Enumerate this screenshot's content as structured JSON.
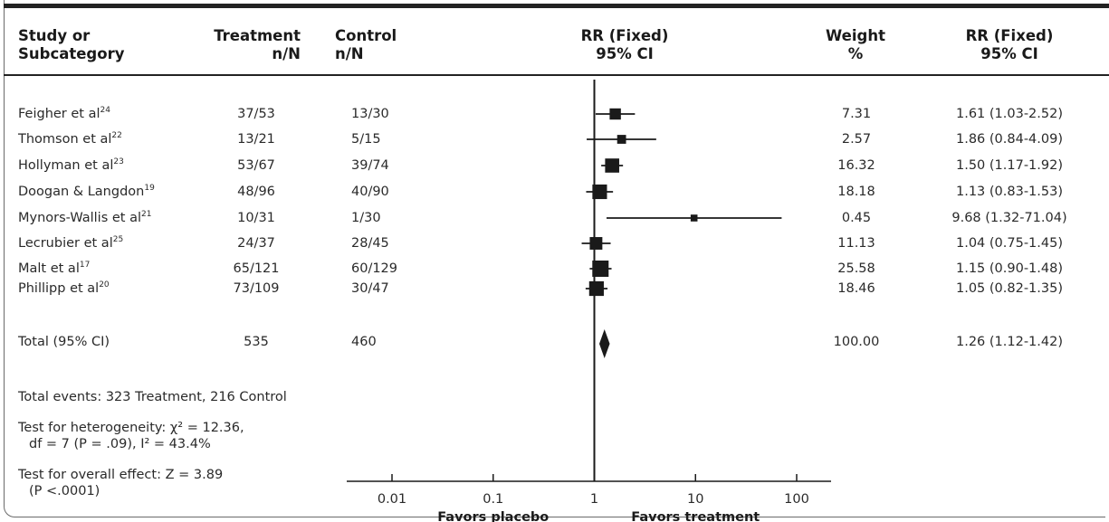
{
  "headers": {
    "study": [
      "Study or",
      "Subcategory"
    ],
    "treatment": [
      "Treatment",
      "n/N"
    ],
    "control": [
      "Control",
      "n/N"
    ],
    "rr_plot": [
      "RR (Fixed)",
      "95% CI"
    ],
    "weight": [
      "Weight",
      "%"
    ],
    "rr_text": [
      "RR (Fixed)",
      "95% CI"
    ]
  },
  "rows": [
    {
      "study": "Feigher et al",
      "ref": "24",
      "treatment": "37/53",
      "control": "13/30",
      "weight": "7.31",
      "rr_text": "1.61 (1.03-2.52)"
    },
    {
      "study": "Thomson et al",
      "ref": "22",
      "treatment": "13/21",
      "control": "5/15",
      "weight": "2.57",
      "rr_text": "1.86 (0.84-4.09)"
    },
    {
      "study": "Hollyman et al",
      "ref": "23",
      "treatment": "53/67",
      "control": "39/74",
      "weight": "16.32",
      "rr_text": "1.50 (1.17-1.92)"
    },
    {
      "study": "Doogan & Langdon",
      "ref": "19",
      "treatment": "48/96",
      "control": "40/90",
      "weight": "18.18",
      "rr_text": "1.13 (0.83-1.53)"
    },
    {
      "study": "Mynors-Wallis et al",
      "ref": "21",
      "treatment": "10/31",
      "control": "1/30",
      "weight": "0.45",
      "rr_text": "9.68 (1.32-71.04)"
    },
    {
      "study": "Lecrubier et al",
      "ref": "25",
      "treatment": "24/37",
      "control": "28/45",
      "weight": "11.13",
      "rr_text": "1.04 (0.75-1.45)"
    },
    {
      "study": "Malt et al",
      "ref": "17",
      "treatment": "65/121",
      "control": "60/129",
      "weight": "25.58",
      "rr_text": "1.15 (0.90-1.48)"
    },
    {
      "study": "Phillipp et al",
      "ref": "20",
      "treatment": "73/109",
      "control": "30/47",
      "weight": "18.46",
      "rr_text": "1.05 (0.82-1.35)"
    }
  ],
  "total": {
    "study": "Total (95% CI)",
    "treatment": "535",
    "control": "460",
    "weight": "100.00",
    "rr_text": "1.26 (1.12-1.42)"
  },
  "footer": {
    "events": "Total events: 323 Treatment, 216 Control",
    "heterogeneity_line1": "Test for heterogeneity: χ² = 12.36,",
    "heterogeneity_line2": "df = 7 (P = .09), I² = 43.4%",
    "overall_line1": "Test for overall effect: Z = 3.89",
    "overall_line2": "(P <.0001)"
  },
  "axis": {
    "ticks": [
      "0.01",
      "0.1",
      "1",
      "10",
      "100"
    ],
    "favors_left": "Favors placebo",
    "favors_right": "Favors treatment"
  },
  "chart_data": {
    "type": "forest",
    "scale": "log",
    "xlim": [
      0.01,
      100
    ],
    "null_value": 1,
    "studies": [
      {
        "name": "Feigher et al",
        "rr": 1.61,
        "lo": 1.03,
        "hi": 2.52,
        "weight": 7.31
      },
      {
        "name": "Thomson et al",
        "rr": 1.86,
        "lo": 0.84,
        "hi": 4.09,
        "weight": 2.57
      },
      {
        "name": "Hollyman et al",
        "rr": 1.5,
        "lo": 1.17,
        "hi": 1.92,
        "weight": 16.32
      },
      {
        "name": "Doogan & Langdon",
        "rr": 1.13,
        "lo": 0.83,
        "hi": 1.53,
        "weight": 18.18
      },
      {
        "name": "Mynors-Wallis et al",
        "rr": 9.68,
        "lo": 1.32,
        "hi": 71.04,
        "weight": 0.45
      },
      {
        "name": "Lecrubier et al",
        "rr": 1.04,
        "lo": 0.75,
        "hi": 1.45,
        "weight": 11.13
      },
      {
        "name": "Malt et al",
        "rr": 1.15,
        "lo": 0.9,
        "hi": 1.48,
        "weight": 25.58
      },
      {
        "name": "Phillipp et al",
        "rr": 1.05,
        "lo": 0.82,
        "hi": 1.35,
        "weight": 18.46
      }
    ],
    "pooled": {
      "rr": 1.26,
      "lo": 1.12,
      "hi": 1.42
    }
  }
}
